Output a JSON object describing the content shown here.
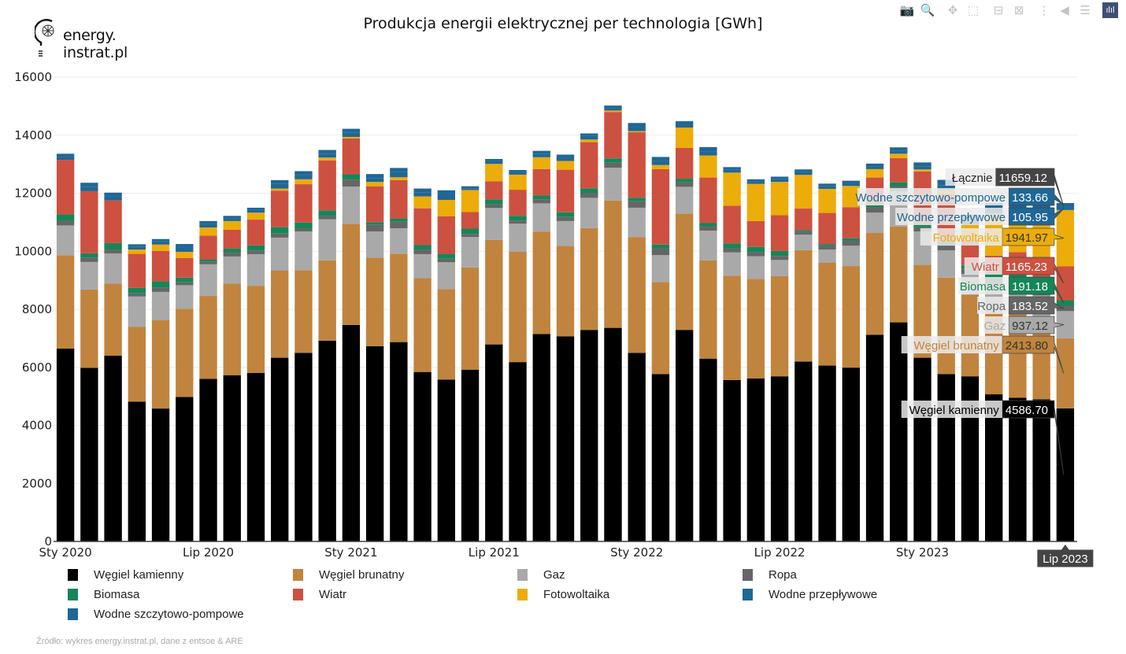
{
  "logo": {
    "line1": "energy.",
    "line2": "instrat.pl"
  },
  "title": "Produkcja energii elektrycznej per technologia [GWh]",
  "modebar": [
    {
      "name": "camera-icon",
      "glyph": "📷",
      "label": "Download plot as png"
    },
    {
      "name": "zoom-icon",
      "glyph": "🔍",
      "label": "Zoom"
    },
    {
      "name": "pan-icon",
      "glyph": "✥",
      "label": "Pan"
    },
    {
      "name": "box-select-icon",
      "glyph": "⬚",
      "label": "Box Select"
    },
    {
      "name": "zoom-out-icon",
      "glyph": "⊟",
      "label": "Zoom out"
    },
    {
      "name": "autoscale-icon",
      "glyph": "⊠",
      "label": "Autoscale"
    },
    {
      "name": "spike-lines-icon",
      "glyph": "⋮",
      "label": "Toggle Spike Lines"
    },
    {
      "name": "hover-closest-icon",
      "glyph": "◀",
      "label": "Show closest data on hover"
    },
    {
      "name": "hover-compare-icon",
      "glyph": "☰",
      "label": "Compare data on hover"
    },
    {
      "name": "plotly-logo-icon",
      "glyph": "ılıl",
      "label": "Produced with Plotly"
    }
  ],
  "source": "Źródło: wykres energy.instrat.pl, dane z entsoe & ARE",
  "colors": {
    "Węgiel kamienny": "#000000",
    "Węgiel brunatny": "#c0843e",
    "Gaz": "#a9a9a9",
    "Ropa": "#666666",
    "Biomasa": "#158657",
    "Wiatr": "#cc5140",
    "Fotowoltaika": "#ecac0a",
    "Wodne przepływowe": "#1f6796",
    "Wodne szczytowo-pompowe": "#1f6796"
  },
  "legend": [
    "Węgiel kamienny",
    "Węgiel brunatny",
    "Gaz",
    "Ropa",
    "Biomasa",
    "Wiatr",
    "Fotowoltaika",
    "Wodne przepływowe",
    "Wodne szczytowo-pompowe"
  ],
  "hover": {
    "x_label": "Lip 2023",
    "total_label": "Łącznie",
    "total_value": "11659.12",
    "rows": [
      {
        "name": "Wodne szczytowo-pompowe",
        "value": "133.66"
      },
      {
        "name": "Wodne przepływowe",
        "value": "105.95"
      },
      {
        "name": "Fotowoltaika",
        "value": "1941.97"
      },
      {
        "name": "Wiatr",
        "value": "1165.23"
      },
      {
        "name": "Biomasa",
        "value": "191.18"
      },
      {
        "name": "Ropa",
        "value": "183.52"
      },
      {
        "name": "Gaz",
        "value": "937.12"
      },
      {
        "name": "Węgiel brunatny",
        "value": "2413.80"
      },
      {
        "name": "Węgiel kamienny",
        "value": "4586.70"
      }
    ]
  },
  "chart_data": {
    "type": "bar",
    "barmode": "stack",
    "title": "Produkcja energii elektrycznej per technologia [GWh]",
    "xlabel": "",
    "ylabel": "",
    "ylim": [
      0,
      16000
    ],
    "yticks": [
      0,
      2000,
      4000,
      6000,
      8000,
      10000,
      12000,
      14000,
      16000
    ],
    "xtick_labels": [
      {
        "index": 0,
        "label": "Sty 2020"
      },
      {
        "index": 6,
        "label": "Lip 2020"
      },
      {
        "index": 12,
        "label": "Sty 2021"
      },
      {
        "index": 18,
        "label": "Lip 2021"
      },
      {
        "index": 24,
        "label": "Sty 2022"
      },
      {
        "index": 30,
        "label": "Lip 2022"
      },
      {
        "index": 36,
        "label": "Sty 2023"
      }
    ],
    "grid": true,
    "legend_position": "bottom",
    "categories": [
      "2020-01",
      "2020-02",
      "2020-03",
      "2020-04",
      "2020-05",
      "2020-06",
      "2020-07",
      "2020-08",
      "2020-09",
      "2020-10",
      "2020-11",
      "2020-12",
      "2021-01",
      "2021-02",
      "2021-03",
      "2021-04",
      "2021-05",
      "2021-06",
      "2021-07",
      "2021-08",
      "2021-09",
      "2021-10",
      "2021-11",
      "2021-12",
      "2022-01",
      "2022-02",
      "2022-03",
      "2022-04",
      "2022-05",
      "2022-06",
      "2022-07",
      "2022-08",
      "2022-09",
      "2022-10",
      "2022-11",
      "2022-12",
      "2023-01",
      "2023-02",
      "2023-03",
      "2023-04",
      "2023-05",
      "2023-06",
      "2023-07"
    ],
    "series": [
      {
        "name": "Węgiel kamienny",
        "values": [
          6650,
          5980,
          6400,
          4820,
          4580,
          4980,
          5600,
          5730,
          5810,
          6330,
          6500,
          6920,
          7460,
          6730,
          6870,
          5840,
          5580,
          5920,
          6790,
          6180,
          7150,
          7070,
          7290,
          7360,
          6500,
          5770,
          7290,
          6300,
          5560,
          5620,
          5690,
          6200,
          6060,
          5990,
          7120,
          7550,
          6330,
          5770,
          5690,
          5070,
          4950,
          4900,
          4587
        ]
      },
      {
        "name": "Węgiel brunatny",
        "values": [
          3210,
          2700,
          2490,
          2580,
          3040,
          3040,
          2860,
          3160,
          3000,
          3010,
          2840,
          2770,
          3480,
          3050,
          3040,
          3230,
          3110,
          3520,
          3600,
          3810,
          3530,
          3120,
          3510,
          4390,
          3990,
          3170,
          4010,
          3390,
          3600,
          3430,
          3450,
          3840,
          3540,
          3500,
          3510,
          3300,
          3200,
          3320,
          2810,
          2800,
          2950,
          2600,
          2414
        ]
      },
      {
        "name": "Gaz",
        "values": [
          1030,
          950,
          1030,
          1040,
          980,
          810,
          1090,
          930,
          1090,
          1130,
          1340,
          1410,
          1290,
          900,
          880,
          830,
          930,
          1050,
          1100,
          960,
          970,
          850,
          1040,
          1130,
          1010,
          930,
          920,
          1020,
          800,
          780,
          560,
          530,
          460,
          700,
          700,
          1210,
          1150,
          940,
          720,
          1000,
          1000,
          980,
          937
        ]
      },
      {
        "name": "Ropa",
        "values": [
          160,
          150,
          140,
          110,
          140,
          100,
          100,
          130,
          130,
          140,
          100,
          110,
          240,
          230,
          230,
          160,
          120,
          110,
          120,
          110,
          140,
          140,
          160,
          170,
          220,
          220,
          150,
          150,
          140,
          140,
          140,
          110,
          140,
          170,
          180,
          170,
          150,
          160,
          170,
          180,
          180,
          180,
          184
        ]
      },
      {
        "name": "Biomasa",
        "values": [
          220,
          150,
          220,
          190,
          220,
          160,
          70,
          140,
          170,
          220,
          210,
          200,
          180,
          90,
          110,
          150,
          170,
          180,
          170,
          160,
          130,
          160,
          170,
          150,
          120,
          140,
          130,
          110,
          170,
          180,
          170,
          50,
          50,
          90,
          100,
          140,
          130,
          140,
          120,
          180,
          190,
          190,
          191
        ]
      },
      {
        "name": "Wiatr",
        "values": [
          1880,
          2140,
          1470,
          1170,
          1050,
          680,
          820,
          650,
          890,
          1260,
          1320,
          1720,
          1240,
          1240,
          1320,
          1270,
          1290,
          570,
          630,
          900,
          910,
          1470,
          1590,
          1600,
          2260,
          2600,
          1060,
          1570,
          1300,
          890,
          1230,
          740,
          1070,
          1070,
          930,
          840,
          1790,
          1640,
          880,
          620,
          700,
          950,
          1165
        ]
      },
      {
        "name": "Fotowoltaika",
        "values": [
          0,
          0,
          0,
          150,
          220,
          210,
          280,
          300,
          240,
          70,
          170,
          100,
          50,
          150,
          100,
          410,
          570,
          760,
          600,
          520,
          410,
          300,
          90,
          50,
          40,
          140,
          700,
          760,
          1140,
          1280,
          1150,
          1160,
          830,
          730,
          290,
          150,
          70,
          160,
          520,
          1450,
          1480,
          1440,
          1942
        ]
      },
      {
        "name": "Wodne przepływowe",
        "values": [
          100,
          140,
          130,
          90,
          110,
          150,
          120,
          90,
          90,
          160,
          140,
          130,
          140,
          130,
          180,
          130,
          190,
          60,
          100,
          90,
          110,
          110,
          120,
          90,
          150,
          140,
          100,
          140,
          100,
          90,
          90,
          100,
          100,
          90,
          90,
          100,
          110,
          150,
          150,
          160,
          150,
          140,
          106
        ]
      },
      {
        "name": "Wodne szczytowo-pompowe",
        "values": [
          110,
          150,
          140,
          90,
          80,
          120,
          100,
          90,
          80,
          130,
          140,
          130,
          140,
          140,
          140,
          140,
          140,
          70,
          70,
          70,
          110,
          110,
          90,
          80,
          130,
          140,
          120,
          150,
          90,
          70,
          90,
          90,
          80,
          90,
          100,
          120,
          130,
          180,
          200,
          200,
          200,
          200,
          134
        ]
      }
    ]
  }
}
